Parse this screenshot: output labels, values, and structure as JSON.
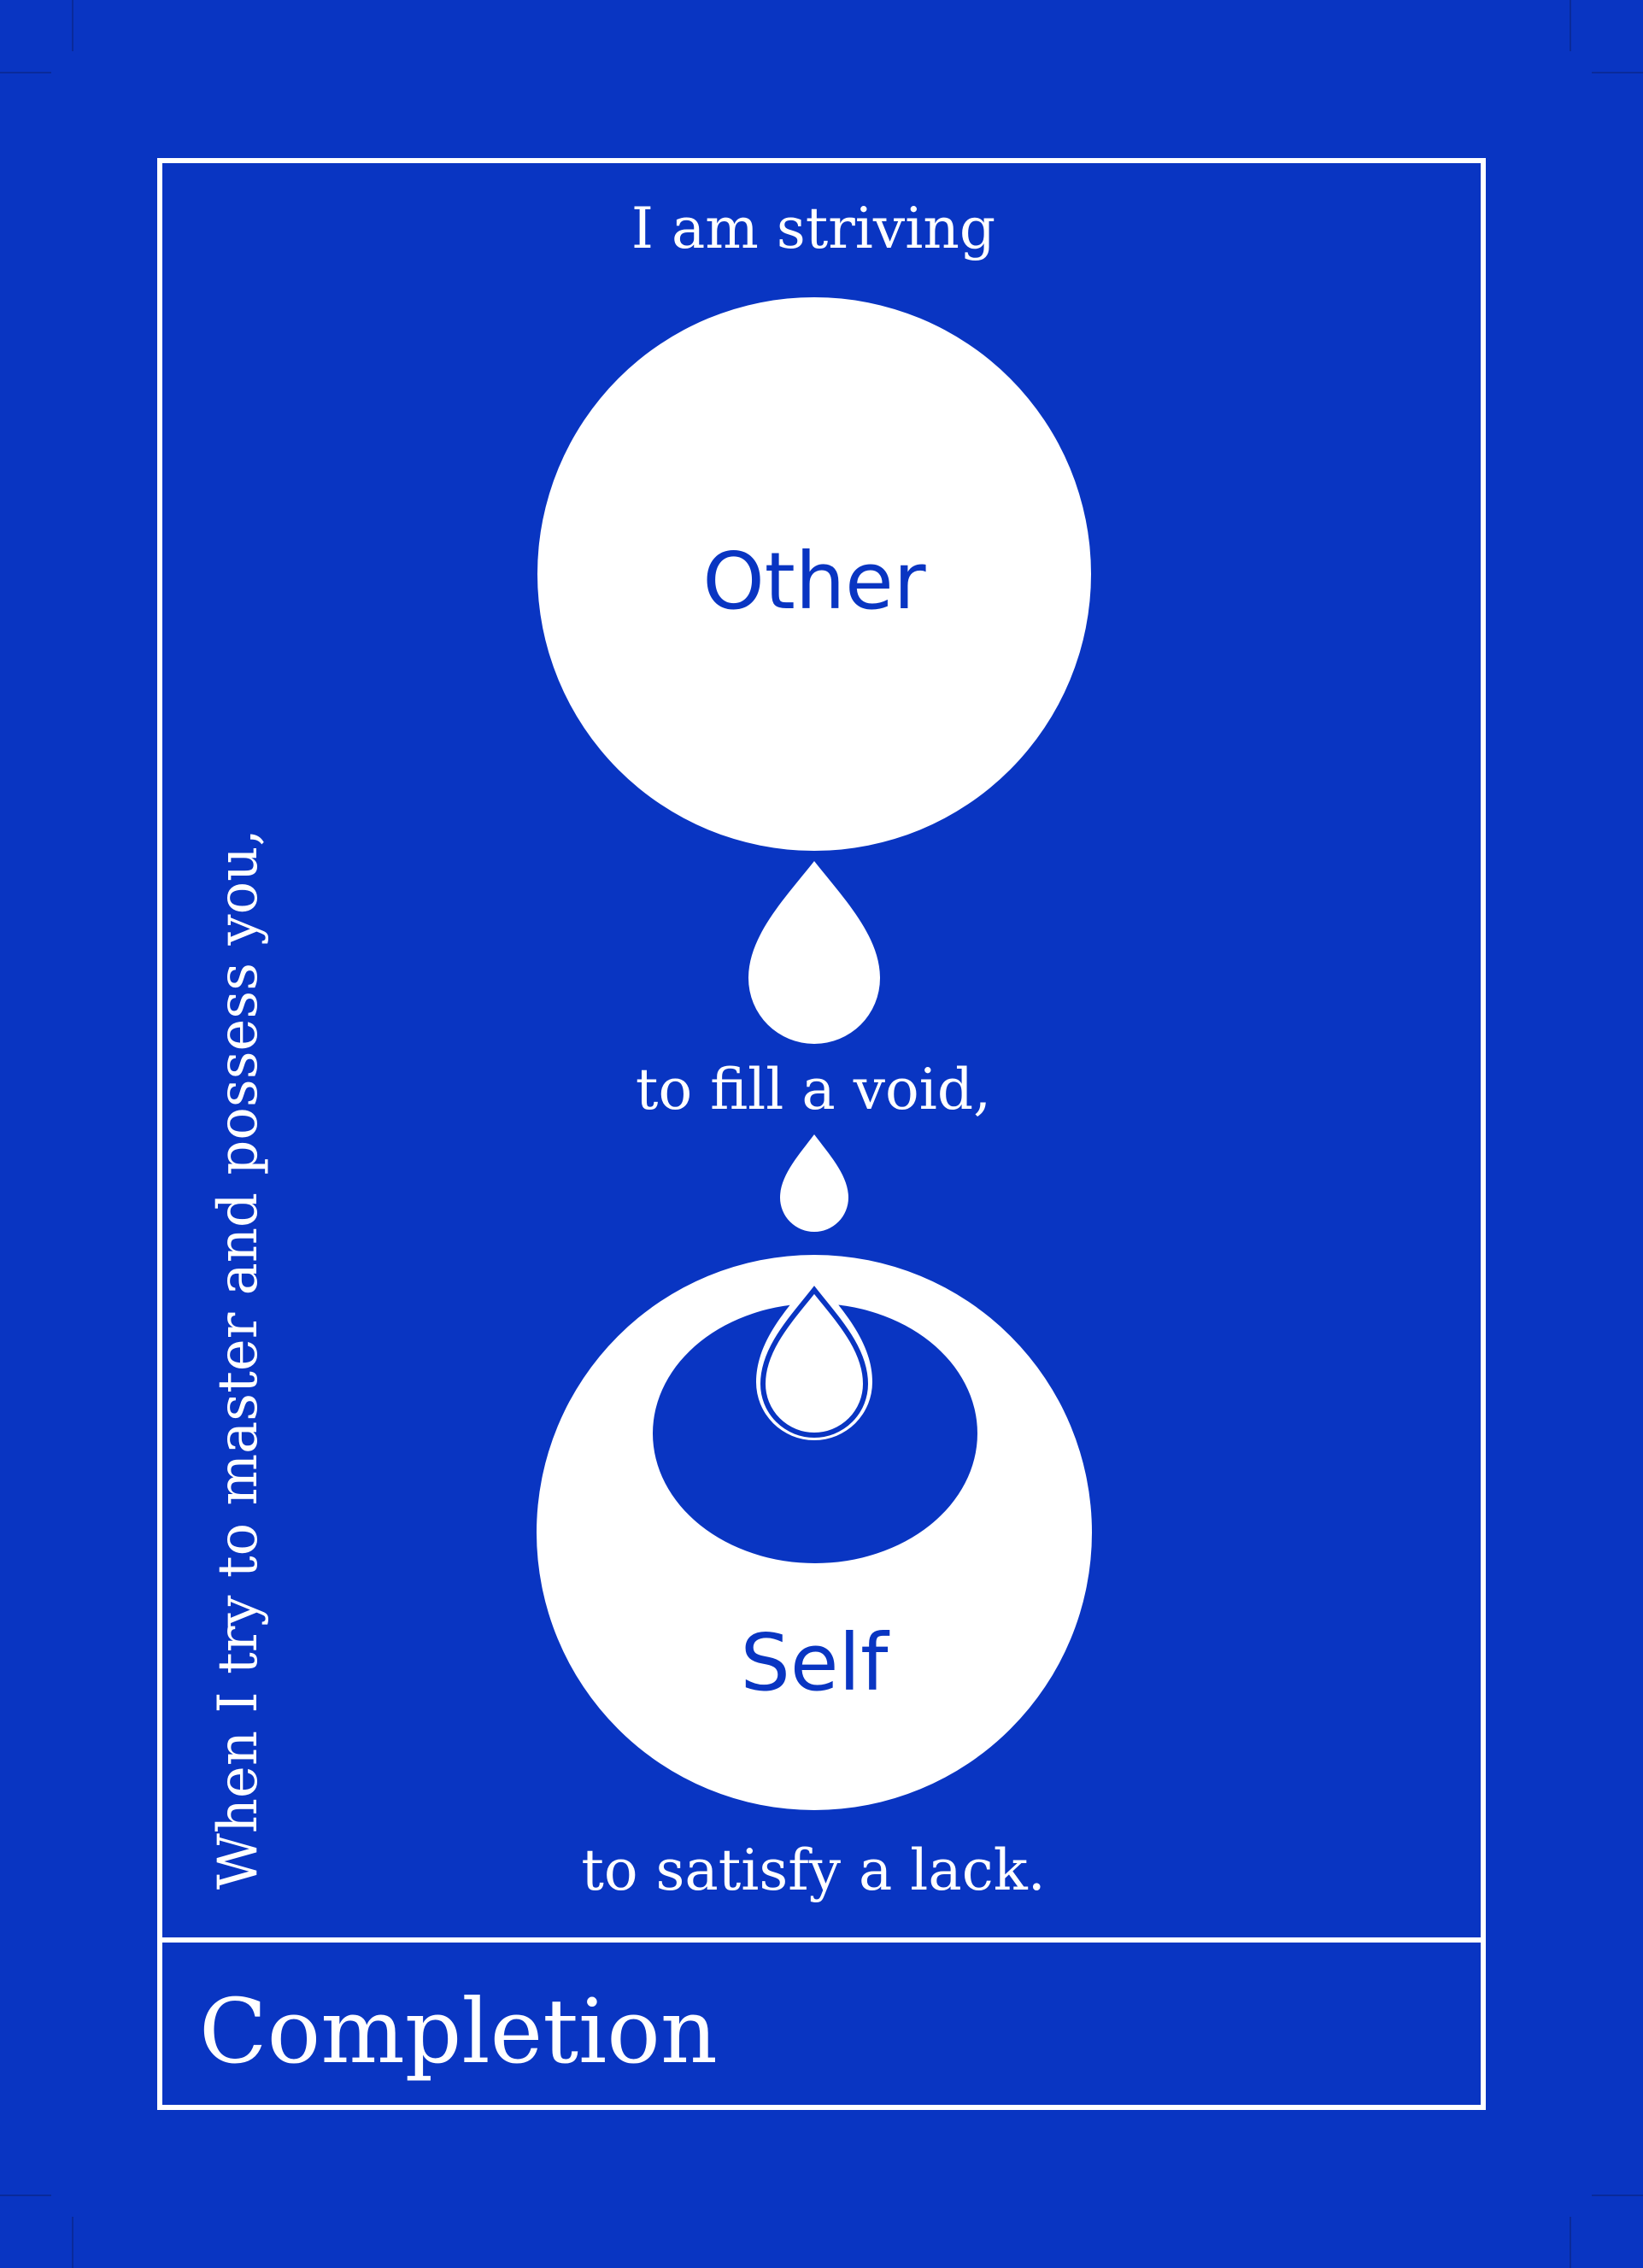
{
  "colors": {
    "background": "#0935C2",
    "foreground": "#FFFFFF"
  },
  "card": {
    "top_text": "I am striving",
    "side_text": "When I try to master and possess you,",
    "middle_text": "to fill a void,",
    "bottom_text": "to satisfy a lack.",
    "other_label": "Other",
    "self_label": "Self",
    "title": "Completion"
  }
}
